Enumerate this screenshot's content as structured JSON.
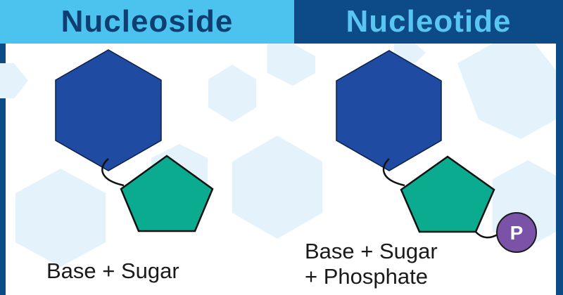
{
  "titles": {
    "left": "Nucleoside",
    "right": "Nucleotide"
  },
  "labels": {
    "nucleoside_formula": "Base + Sugar",
    "nucleotide_formula_line1": "Base + Sugar",
    "nucleotide_formula_line2": "+ Phosphate",
    "phosphate_symbol": "P"
  },
  "colors": {
    "header_left_bg": "#4cc3ee",
    "header_left_text": "#0d3f73",
    "header_right_bg": "#0c4b85",
    "header_right_text": "#58c6ee",
    "base_hexagon": "#1f4ba3",
    "sugar_pentagon": "#0bab8f",
    "phosphate_circle": "#7a53a8",
    "side_border": "#0c4b85"
  }
}
